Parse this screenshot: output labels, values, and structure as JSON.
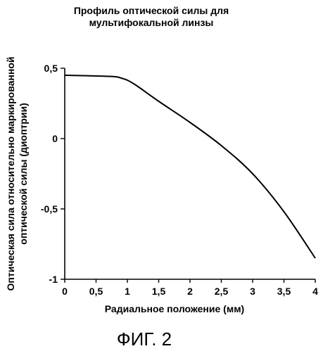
{
  "chart_data": {
    "type": "line",
    "title_lines": [
      "Профиль оптической силы для",
      "мультифокальной линзы"
    ],
    "xlabel": "Радиальное положение (мм)",
    "ylabel_lines": [
      "Оптическая сила относительно маркированной",
      "оптической силы (диоптрии)"
    ],
    "xlim": [
      0,
      4
    ],
    "ylim": [
      -1,
      0.5
    ],
    "x_ticks": [
      0,
      0.5,
      1,
      1.5,
      2,
      2.5,
      3,
      3.5,
      4
    ],
    "x_tick_labels": [
      "0",
      "0,5",
      "1",
      "1,5",
      "2",
      "2,5",
      "3",
      "3,5",
      "4"
    ],
    "y_ticks": [
      0.5,
      0,
      -0.5,
      -1
    ],
    "y_tick_labels": [
      "0,5",
      "0",
      "-0,5",
      "-1"
    ],
    "grid": false,
    "series": [
      {
        "x": [
          0,
          0.5,
          0.8,
          0.9,
          1.0,
          1.1,
          1.2,
          1.5,
          2.0,
          2.5,
          3.0,
          3.5,
          4.0
        ],
        "values": [
          0.45,
          0.445,
          0.44,
          0.43,
          0.415,
          0.39,
          0.36,
          0.265,
          0.115,
          -0.05,
          -0.25,
          -0.52,
          -0.85
        ],
        "color": "#000000"
      }
    ]
  },
  "figure_caption": "ФИГ. 2"
}
